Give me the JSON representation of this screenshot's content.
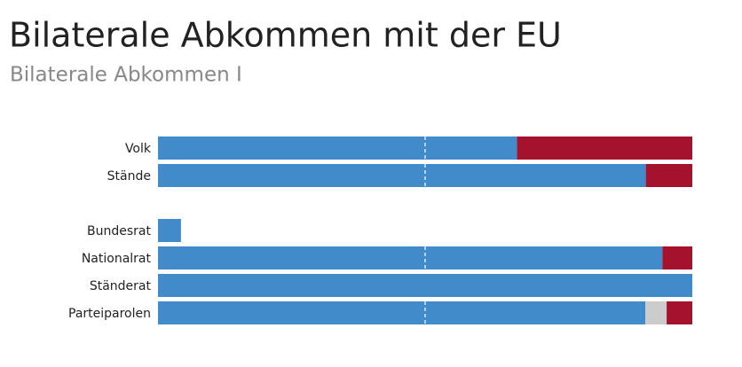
{
  "chart_data": {
    "type": "stacked-bar-horizontal",
    "title": "Bilaterale Abkommen mit der EU",
    "subtitle": "Bilaterale Abkommen I",
    "categories": [
      "Volk",
      "Stände",
      "Bundesrat",
      "Nationalrat",
      "Ständerat",
      "Parteiparolen"
    ],
    "series": [
      {
        "color": "#428bca",
        "values": [
          67.2,
          91.3,
          4.3,
          94.4,
          100,
          91.2
        ]
      },
      {
        "color": "#cccccc",
        "values": [
          null,
          null,
          null,
          null,
          null,
          4.0
        ]
      },
      {
        "color": "#a4122e",
        "values": [
          32.8,
          8.7,
          null,
          5.6,
          null,
          4.8
        ]
      }
    ],
    "xlim": [
      0,
      100
    ],
    "reference_line": 50
  }
}
